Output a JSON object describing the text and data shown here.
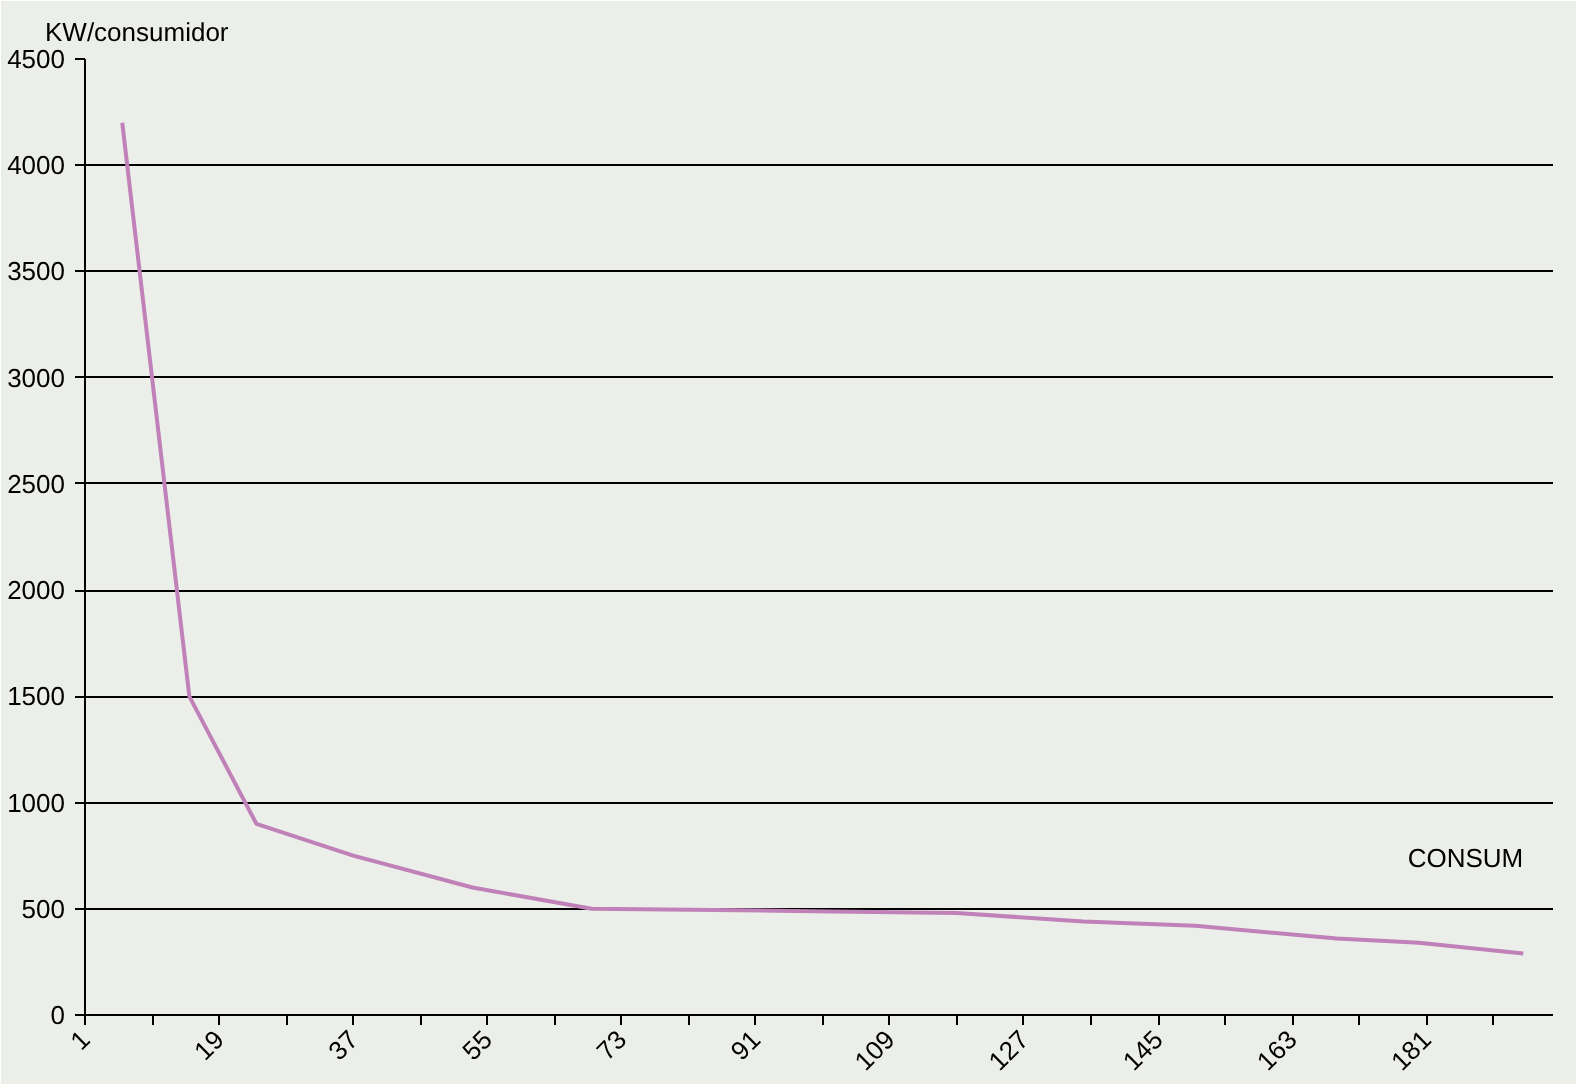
{
  "chart_data": {
    "type": "line",
    "ylabel": "KW/consumidor",
    "x": [
      6,
      15,
      24,
      37,
      53,
      69,
      96,
      118,
      135,
      150,
      169,
      180,
      194
    ],
    "series": [
      {
        "name": "CONSUM",
        "color": "#c080b8",
        "values": [
          4200,
          1500,
          900,
          750,
          600,
          500,
          490,
          480,
          440,
          420,
          360,
          340,
          290
        ]
      }
    ],
    "xlim": [
      1,
      198
    ],
    "ylim": [
      0,
      4500
    ],
    "xticks": [
      1,
      {
        "value": 10,
        "label": null
      },
      19,
      {
        "value": 28,
        "label": null
      },
      37,
      {
        "value": 46,
        "label": null
      },
      55,
      {
        "value": 64,
        "label": null
      },
      73,
      {
        "value": 82,
        "label": null
      },
      91,
      {
        "value": 100,
        "label": null
      },
      109,
      {
        "value": 118,
        "label": null
      },
      127,
      {
        "value": 136,
        "label": null
      },
      145,
      {
        "value": 154,
        "label": null
      },
      163,
      {
        "value": 172,
        "label": null
      },
      181,
      {
        "value": 190,
        "label": null
      }
    ],
    "yticks": [
      0,
      500,
      1000,
      1500,
      2000,
      2500,
      3000,
      3500,
      4000,
      4500
    ],
    "grid": "y",
    "marker": "none",
    "line_style": "solid"
  }
}
